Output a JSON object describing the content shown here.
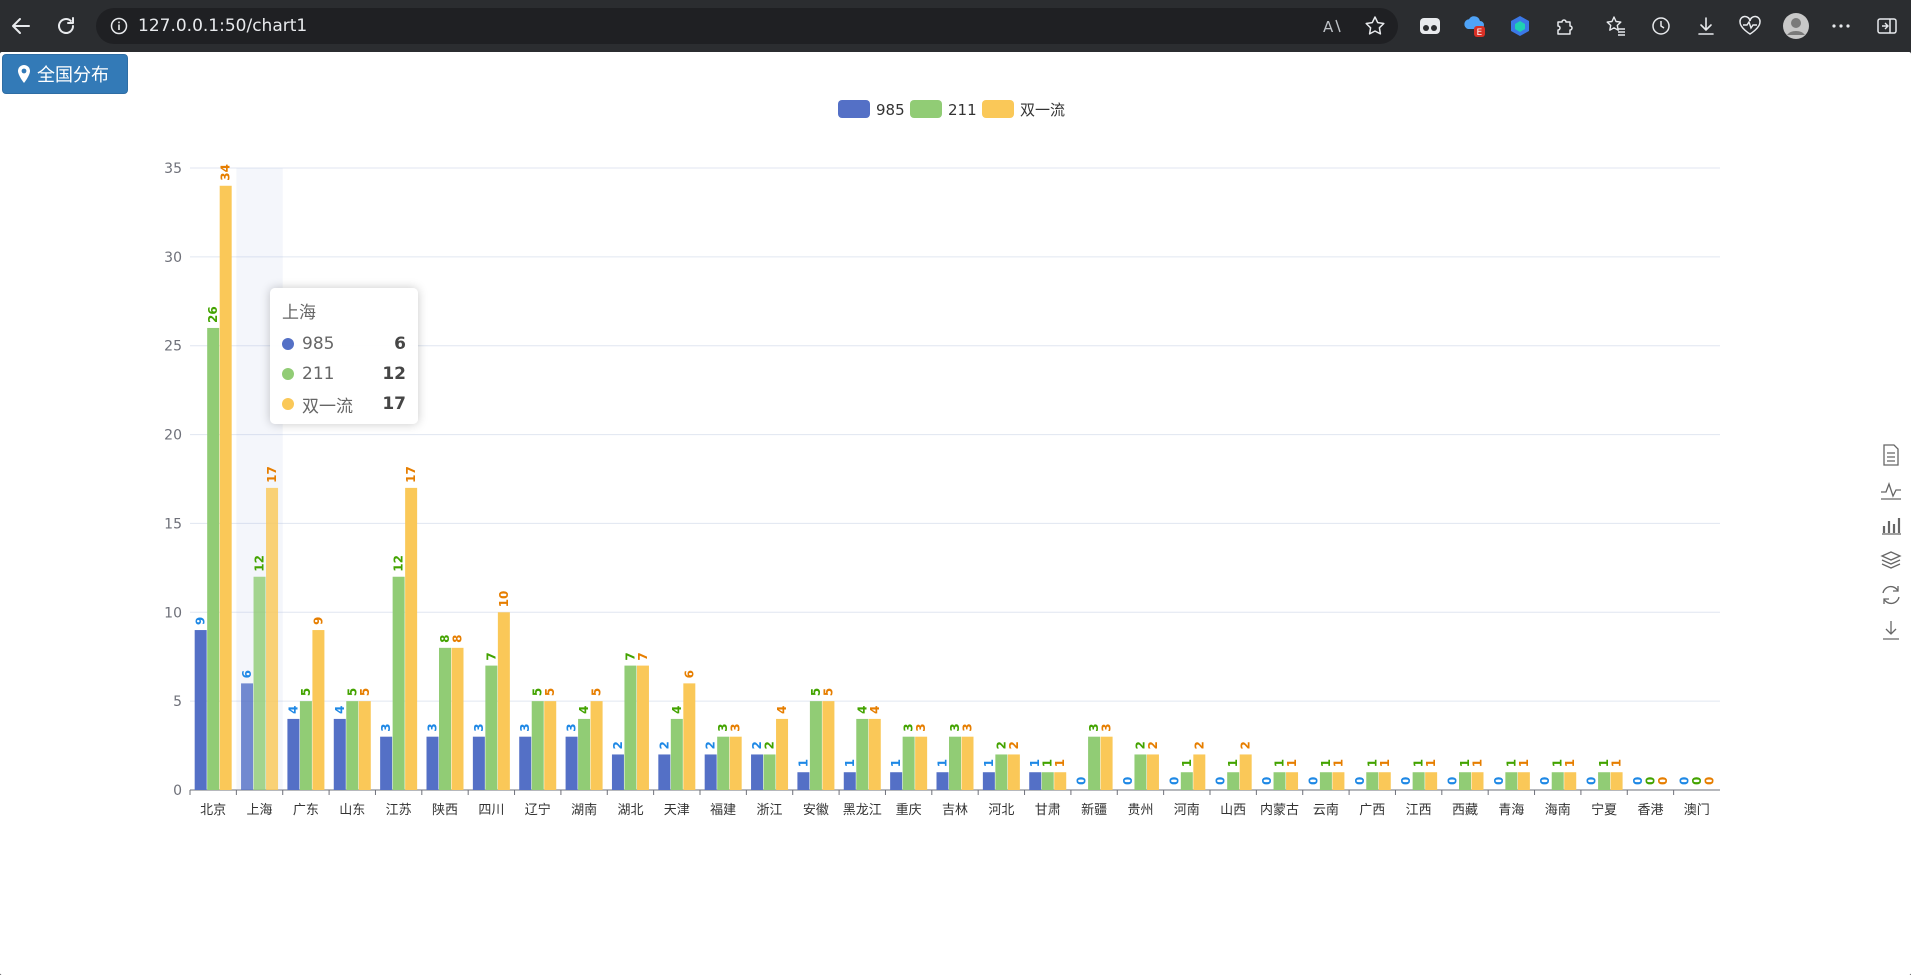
{
  "browser": {
    "url": "127.0.0.1:50/chart1",
    "extension_badge": "E"
  },
  "page": {
    "region_button_label": "全国分布"
  },
  "colors": {
    "s985": "#5470c6",
    "s211": "#91cc75",
    "double": "#fac858",
    "label985": "#1e88e5",
    "label211": "#43a300",
    "labelDouble": "#e67e00"
  },
  "tooltip": {
    "title": "上海",
    "rows": [
      {
        "name": "985",
        "value": "6"
      },
      {
        "name": "211",
        "value": "12"
      },
      {
        "name": "双一流",
        "value": "17"
      }
    ]
  },
  "toolbox_icons": [
    "data-view-icon",
    "line-chart-icon",
    "bar-chart-icon",
    "stack-icon",
    "restore-icon",
    "save-image-icon"
  ],
  "chart_data": {
    "type": "bar",
    "categories": [
      "北京",
      "上海",
      "广东",
      "山东",
      "江苏",
      "陕西",
      "四川",
      "辽宁",
      "湖南",
      "湖北",
      "天津",
      "福建",
      "浙江",
      "安徽",
      "黑龙江",
      "重庆",
      "吉林",
      "河北",
      "甘肃",
      "新疆",
      "贵州",
      "河南",
      "山西",
      "内蒙古",
      "云南",
      "广西",
      "江西",
      "西藏",
      "青海",
      "海南",
      "宁夏",
      "香港",
      "澳门"
    ],
    "series": [
      {
        "name": "985",
        "values": [
          9,
          6,
          4,
          4,
          3,
          3,
          3,
          3,
          3,
          2,
          2,
          2,
          2,
          1,
          1,
          1,
          1,
          1,
          1,
          0,
          0,
          0,
          0,
          0,
          0,
          0,
          0,
          0,
          0,
          0,
          0,
          0,
          0
        ]
      },
      {
        "name": "211",
        "values": [
          26,
          12,
          5,
          5,
          12,
          8,
          7,
          5,
          4,
          7,
          4,
          3,
          2,
          5,
          4,
          3,
          3,
          2,
          1,
          3,
          2,
          1,
          1,
          1,
          1,
          1,
          1,
          1,
          1,
          1,
          1,
          0,
          0
        ]
      },
      {
        "name": "双一流",
        "values": [
          34,
          17,
          9,
          5,
          17,
          8,
          10,
          5,
          5,
          7,
          6,
          3,
          4,
          5,
          4,
          3,
          3,
          2,
          1,
          3,
          2,
          2,
          2,
          1,
          1,
          1,
          1,
          1,
          1,
          1,
          1,
          0,
          0
        ]
      }
    ],
    "ylim": [
      0,
      35
    ],
    "yticks": [
      0,
      5,
      10,
      15,
      20,
      25,
      30,
      35
    ],
    "grid": true,
    "legend_position": "top-center",
    "highlighted_category": "上海"
  }
}
